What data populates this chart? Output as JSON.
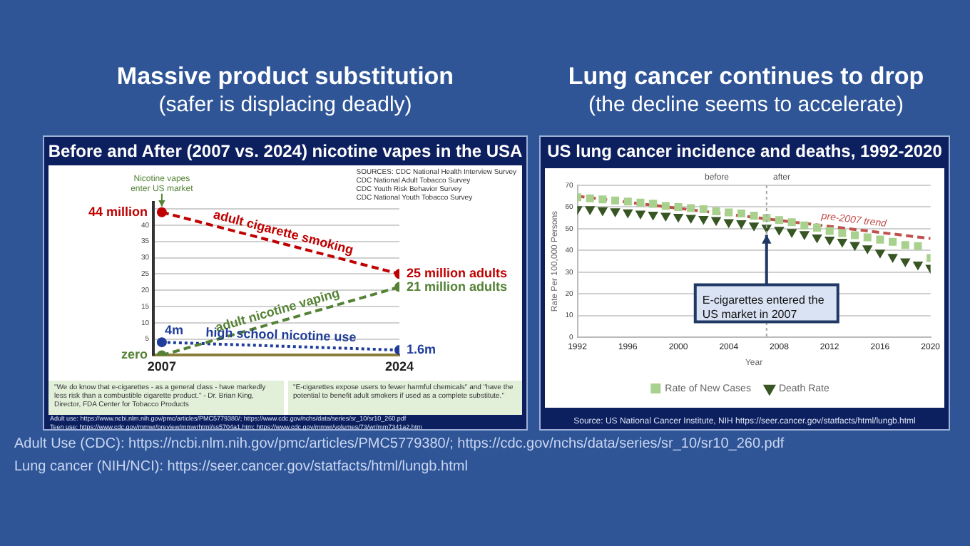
{
  "chart_data": [
    {
      "type": "line",
      "title": "Massive product substitution",
      "subtitle": "(safer is displacing deadly)",
      "x": [
        2007,
        2024
      ],
      "xlim": [
        2006.4,
        2024
      ],
      "xticks": [
        2007,
        2024
      ],
      "ylim": [
        0,
        47
      ],
      "yticks": [
        5,
        10,
        15,
        20,
        25,
        30,
        35,
        40,
        {
          "value": 45,
          "label": null
        }
      ],
      "series": [
        {
          "name": "adult cigarette smoking",
          "color": "#c00000",
          "values": [
            44,
            25
          ],
          "value_labels": [
            "44 million",
            "25 million adults"
          ]
        },
        {
          "name": "adult nicotine vaping",
          "color": "#548235",
          "values": [
            0,
            21
          ],
          "value_labels": [
            "zero",
            "21 million adults"
          ]
        },
        {
          "name": "high school nicotine use",
          "color": "#1f3d99",
          "values": [
            4,
            1.6
          ],
          "value_labels": [
            "4m",
            "1.6m"
          ],
          "line_style": "dotted"
        }
      ],
      "marker": "circle",
      "line_style": "dashed",
      "grid": "y",
      "legend": false,
      "annotations": [
        "Before and After (2007 vs. 2024) nicotine vapes in the USA",
        {
          "text": "Nicotine vapes enter US market",
          "x": 2007,
          "y": 44
        },
        "SOURCES:  CDC National Health Interview Survey\nCDC National Adult Tobacco Survey\nCDC Youth Risk Behavior Survey\nCDC National Youth Tobacco Survey",
        "\"We do know that e-cigarettes - as a general class - have markedly less risk than a combustible cigarette product.\" - Dr. Brian King, Director, FDA Center for Tobacco Products",
        "\"E-cigarettes expose users to fewer harmful chemicals\" and \"have the potential to benefit adult smokers if used as a complete substitute.\"",
        "Adult use: https://www.ncbi.nlm.nih.gov/pmc/articles/PMC5779380/; https://www.cdc.gov/nchs/data/series/sr_10/sr10_260.pdf",
        "Teen use: https://www.cdc.gov/mmwr/preview/mmwrhtml/ss5704a1.htm; https://www.cdc.gov/mmwr/volumes/73/wr/mm7341a2.htm",
        "Adult Use (CDC): https://ncbi.nlm.nih.gov/pmc/articles/PMC5779380/; https://cdc.gov/nchs/data/series/sr_10/sr10_260.pdf"
      ]
    },
    {
      "type": "scatter",
      "title": "Lung cancer continues to drop",
      "subtitle": "(the decline seems to accelerate)",
      "x": [
        1992,
        1993,
        1994,
        1995,
        1996,
        1997,
        1998,
        1999,
        2000,
        2001,
        2002,
        2003,
        2004,
        2005,
        2006,
        2007,
        2008,
        2009,
        2010,
        2011,
        2012,
        2013,
        2014,
        2015,
        2016,
        2017,
        2018,
        2019,
        2020
      ],
      "xlim": [
        1992,
        2020
      ],
      "xticks": [
        1992,
        1996,
        2000,
        2004,
        2008,
        2012,
        2016,
        2020
      ],
      "ylim": [
        0,
        70
      ],
      "yticks": [
        0,
        10,
        20,
        30,
        40,
        50,
        60,
        70
      ],
      "xlabel": "Year",
      "ylabel": "Rate Per 100,000 Persons",
      "series": [
        {
          "name": "Rate of New Cases",
          "color": "#a9d18e",
          "marker": "square",
          "values": [
            64.5,
            64,
            63.5,
            63,
            62.5,
            62,
            61.5,
            60.5,
            60,
            59.5,
            59,
            58,
            57.5,
            57,
            56,
            55,
            54,
            53,
            51.5,
            50.5,
            49,
            48,
            47,
            46,
            45,
            44,
            42.5,
            42,
            36.5
          ]
        },
        {
          "name": "Death Rate",
          "color": "#375623",
          "marker": "triangle",
          "values": [
            59,
            59,
            58.5,
            58,
            57.5,
            57,
            56.5,
            56,
            55.5,
            55,
            54.5,
            54,
            53,
            52.5,
            51.5,
            50.5,
            49.5,
            48.5,
            47.5,
            46,
            45,
            44,
            42.5,
            41,
            39,
            37,
            35,
            33.5,
            32
          ]
        },
        {
          "name": "pre-2007 trend",
          "type": "line",
          "color": "#c0504d",
          "line_style": "dashed",
          "x": [
            1992,
            2020
          ],
          "values": [
            65,
            45.5
          ]
        }
      ],
      "grid": "y",
      "legend": "bottom",
      "ref_lines": [
        {
          "axis": "x",
          "value": 2007,
          "color": "#a6a6a6",
          "line_style": "dotted"
        }
      ],
      "annotations": [
        "US lung cancer incidence and deaths, 1992-2020",
        "before",
        "after",
        {
          "text": "E-cigarettes entered the US market in 2007",
          "x": 2007,
          "y": 50.5
        },
        "Source:  US National Cancer Institute, NIH  https://seer.cancer.gov/statfacts/html/lungb.html",
        "Lung cancer (NIH/NCI): https://seer.cancer.gov/statfacts/html/lungb.html"
      ]
    }
  ]
}
